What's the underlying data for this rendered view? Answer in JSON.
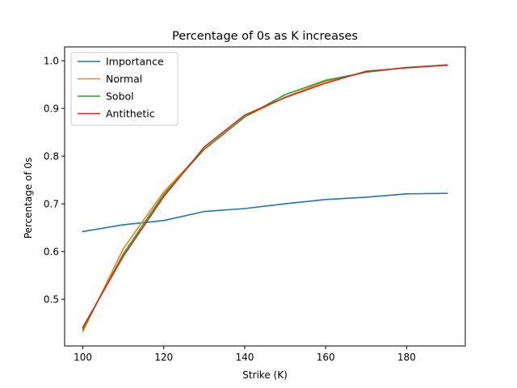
{
  "chart_data": {
    "type": "line",
    "title": "Percentage of 0s as K increases",
    "xlabel": "Strike (K)",
    "ylabel": "Percentage of 0s",
    "x": [
      100,
      110,
      120,
      130,
      140,
      150,
      160,
      170,
      180,
      190
    ],
    "xlim": [
      95.5,
      194.5
    ],
    "ylim": [
      0.402,
      1.029
    ],
    "xticks": [
      100,
      120,
      140,
      160,
      180
    ],
    "yticks": [
      0.5,
      0.6,
      0.7,
      0.8,
      0.9,
      1.0
    ],
    "grid": false,
    "legend_position": "upper-left",
    "series": [
      {
        "name": "Importance",
        "color": "#1f77b4",
        "values": [
          0.642,
          0.656,
          0.665,
          0.684,
          0.69,
          0.7,
          0.709,
          0.714,
          0.721,
          0.722
        ]
      },
      {
        "name": "Normal",
        "color": "#ff7f0e",
        "values": [
          0.432,
          0.606,
          0.725,
          0.815,
          0.882,
          0.924,
          0.957,
          0.976,
          0.986,
          0.99
        ]
      },
      {
        "name": "Sobol",
        "color": "#2ca02c",
        "values": [
          0.437,
          0.595,
          0.72,
          0.814,
          0.882,
          0.929,
          0.959,
          0.976,
          0.986,
          0.991
        ]
      },
      {
        "name": "Antithetic",
        "color": "#d62728",
        "values": [
          0.441,
          0.59,
          0.715,
          0.819,
          0.886,
          0.923,
          0.953,
          0.978,
          0.985,
          0.991
        ]
      }
    ]
  }
}
